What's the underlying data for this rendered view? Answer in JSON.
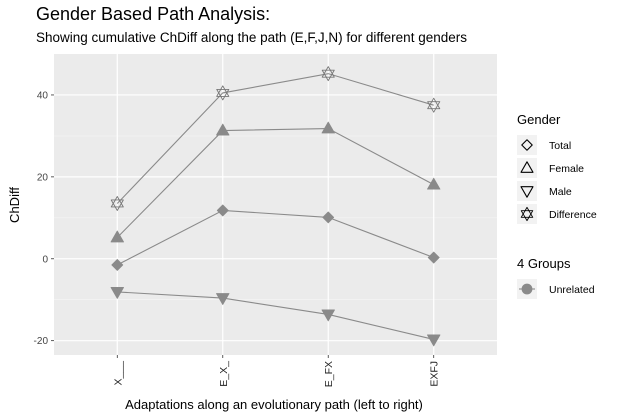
{
  "chart_data": {
    "type": "line",
    "title": "Gender Based Path Analysis:",
    "subtitle": "Showing cumulative ChDiff along the path (E,F,J,N) for different genders",
    "xlabel": "Adaptations along an evolutionary path (left to right)",
    "ylabel": "ChDiff",
    "categories": [
      "X___",
      "E_X_",
      "E_FX",
      "EXFJ"
    ],
    "yticks": [
      -20,
      0,
      20,
      40
    ],
    "ylim": [
      -23.5,
      50
    ],
    "grid": true,
    "legend_position": "right",
    "series": [
      {
        "name": "Difference",
        "shape": "star",
        "values": [
          13.5,
          40.5,
          45.2,
          37.5
        ]
      },
      {
        "name": "Female",
        "shape": "triangle-up",
        "values": [
          5.2,
          31.3,
          31.8,
          18.1
        ]
      },
      {
        "name": "Total",
        "shape": "diamond",
        "values": [
          -1.5,
          11.8,
          10.1,
          0.3
        ]
      },
      {
        "name": "Male",
        "shape": "triangle-down",
        "values": [
          -8.1,
          -9.6,
          -13.6,
          -19.7
        ]
      }
    ],
    "legend": {
      "gender_title": "Gender",
      "gender_items": [
        "Total",
        "Female",
        "Male",
        "Difference"
      ],
      "groups_title": "4 Groups",
      "groups_items": [
        "Unrelated"
      ]
    },
    "colors": {
      "panel_bg": "#ebebeb",
      "grid_major": "#ffffff",
      "line": "#8a8a8a",
      "marker_fill": "#8a8a8a"
    }
  }
}
